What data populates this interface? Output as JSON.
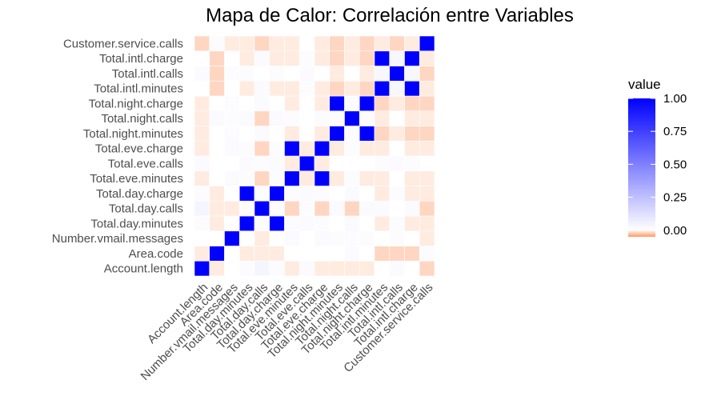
{
  "chart_data": {
    "type": "heatmap",
    "title": "Mapa de Calor: Correlación entre Variables",
    "variables": [
      "Account.length",
      "Area.code",
      "Number.vmail.messages",
      "Total.day.minutes",
      "Total.day.calls",
      "Total.day.charge",
      "Total.eve.minutes",
      "Total.eve.calls",
      "Total.eve.charge",
      "Total.night.minutes",
      "Total.night.calls",
      "Total.night.charge",
      "Total.intl.minutes",
      "Total.intl.calls",
      "Total.intl.charge",
      "Customer.service.calls"
    ],
    "values": [
      [
        1.0,
        -0.01,
        0.0,
        0.01,
        0.04,
        0.01,
        -0.01,
        0.02,
        -0.01,
        -0.01,
        -0.01,
        -0.01,
        0.0,
        0.02,
        0.0,
        -0.02
      ],
      [
        -0.01,
        1.0,
        0.0,
        -0.01,
        -0.01,
        -0.01,
        0.0,
        0.0,
        0.0,
        0.0,
        0.02,
        0.0,
        -0.02,
        -0.02,
        -0.02,
        0.01
      ],
      [
        0.0,
        0.0,
        1.0,
        0.0,
        -0.01,
        0.0,
        0.02,
        0.0,
        0.02,
        0.01,
        0.01,
        0.01,
        0.0,
        0.01,
        0.0,
        -0.01
      ],
      [
        0.01,
        -0.01,
        0.0,
        1.0,
        0.01,
        1.0,
        0.01,
        0.02,
        0.01,
        0.0,
        0.02,
        0.0,
        -0.01,
        0.01,
        -0.01,
        -0.01
      ],
      [
        0.04,
        -0.01,
        -0.01,
        0.01,
        1.0,
        0.01,
        -0.02,
        0.01,
        -0.02,
        0.02,
        -0.02,
        0.02,
        0.02,
        0.0,
        0.02,
        -0.02
      ],
      [
        0.01,
        -0.01,
        0.0,
        1.0,
        0.01,
        1.0,
        0.01,
        0.02,
        0.01,
        0.0,
        0.02,
        0.0,
        -0.01,
        0.01,
        -0.01,
        -0.01
      ],
      [
        -0.01,
        0.0,
        0.02,
        0.01,
        -0.02,
        0.01,
        1.0,
        -0.01,
        1.0,
        -0.01,
        0.01,
        -0.01,
        -0.01,
        0.0,
        -0.01,
        -0.01
      ],
      [
        0.02,
        0.0,
        0.0,
        0.02,
        0.01,
        0.02,
        -0.01,
        1.0,
        -0.01,
        0.0,
        0.0,
        0.0,
        0.01,
        0.02,
        0.01,
        0.0
      ],
      [
        -0.01,
        0.0,
        0.02,
        0.01,
        -0.02,
        0.01,
        1.0,
        -0.01,
        1.0,
        -0.01,
        0.01,
        -0.01,
        -0.01,
        0.0,
        -0.01,
        -0.01
      ],
      [
        -0.01,
        0.0,
        0.01,
        0.0,
        0.02,
        0.0,
        -0.01,
        0.0,
        -0.01,
        1.0,
        0.01,
        1.0,
        -0.02,
        -0.01,
        -0.02,
        -0.02
      ],
      [
        -0.01,
        0.02,
        0.01,
        0.02,
        -0.02,
        0.02,
        0.01,
        0.0,
        0.01,
        0.01,
        1.0,
        0.01,
        -0.01,
        0.0,
        -0.01,
        -0.01
      ],
      [
        -0.01,
        0.0,
        0.01,
        0.0,
        0.02,
        0.0,
        -0.01,
        0.0,
        -0.01,
        1.0,
        0.01,
        1.0,
        -0.02,
        -0.01,
        -0.02,
        -0.02
      ],
      [
        0.0,
        -0.02,
        0.0,
        -0.01,
        0.02,
        -0.01,
        -0.01,
        0.01,
        -0.01,
        -0.02,
        -0.01,
        -0.02,
        1.0,
        0.03,
        1.0,
        -0.01
      ],
      [
        0.02,
        -0.02,
        0.01,
        0.01,
        0.0,
        0.01,
        0.0,
        0.02,
        0.0,
        -0.01,
        0.0,
        -0.01,
        0.03,
        1.0,
        0.03,
        -0.02
      ],
      [
        0.0,
        -0.02,
        0.0,
        -0.01,
        0.02,
        -0.01,
        -0.01,
        0.01,
        -0.01,
        -0.02,
        -0.01,
        -0.02,
        1.0,
        0.03,
        1.0,
        -0.01
      ],
      [
        -0.02,
        0.01,
        -0.01,
        -0.01,
        -0.02,
        -0.01,
        -0.01,
        0.0,
        -0.01,
        -0.02,
        -0.01,
        -0.02,
        -0.01,
        -0.02,
        -0.01,
        1.0
      ]
    ],
    "legend": {
      "title": "value",
      "ticks": [
        "1.00",
        "0.75",
        "0.50",
        "0.25",
        "0.00"
      ],
      "tick_values": [
        1.0,
        0.75,
        0.5,
        0.25,
        0.0
      ],
      "range": [
        -0.05,
        1.0
      ],
      "placement": "right"
    },
    "colors": {
      "high": "#0000FF",
      "mid": "#FFFFFF",
      "low": "#FF9966"
    },
    "grid": false
  }
}
